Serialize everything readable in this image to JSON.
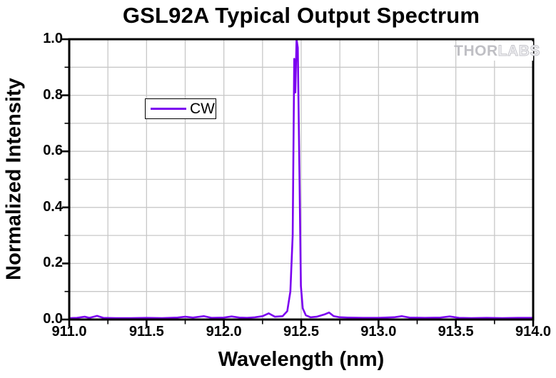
{
  "title": "GSL92A Typical Output Spectrum",
  "watermark": {
    "part1": "THOR",
    "part2": "LABS"
  },
  "legend": {
    "label": "CW"
  },
  "axes": {
    "x": {
      "label": "Wavelength (nm)",
      "min": 911.0,
      "max": 914.0,
      "major_ticks": [
        {
          "value": 911.0,
          "label": "911.0"
        },
        {
          "value": 911.5,
          "label": "911.5"
        },
        {
          "value": 912.0,
          "label": "912.0"
        },
        {
          "value": 912.5,
          "label": "912.5"
        },
        {
          "value": 913.0,
          "label": "913.0"
        },
        {
          "value": 913.5,
          "label": "913.5"
        },
        {
          "value": 914.0,
          "label": "914.0"
        }
      ],
      "minor_step": 0.25
    },
    "y": {
      "label": "Normalized Intensity",
      "min": 0.0,
      "max": 1.0,
      "major_ticks": [
        {
          "value": 0.0,
          "label": "0.0"
        },
        {
          "value": 0.2,
          "label": "0.2"
        },
        {
          "value": 0.4,
          "label": "0.4"
        },
        {
          "value": 0.6,
          "label": "0.6"
        },
        {
          "value": 0.8,
          "label": "0.8"
        },
        {
          "value": 1.0,
          "label": "1.0"
        }
      ],
      "minor_step": 0.1
    }
  },
  "colors": {
    "line": "#7B00F0",
    "grid": "#c8c8c8",
    "frame": "#000000",
    "watermark_gray": "#c6c6cb"
  },
  "chart_data": {
    "type": "line",
    "title": "GSL92A Typical Output Spectrum",
    "xlabel": "Wavelength (nm)",
    "ylabel": "Normalized Intensity",
    "xlim": [
      911.0,
      914.0
    ],
    "ylim": [
      0.0,
      1.0
    ],
    "grid": true,
    "grid_minor_x_nm": 0.25,
    "grid_minor_y": 0.1,
    "legend_position": "upper-left-inside",
    "series": [
      {
        "name": "CW",
        "color": "#7B00F0",
        "peak_wavelength_nm": 912.47,
        "peak_intensity": 1.0,
        "points": [
          [
            911.0,
            0.005
          ],
          [
            911.05,
            0.006
          ],
          [
            911.1,
            0.01
          ],
          [
            911.13,
            0.006
          ],
          [
            911.18,
            0.013
          ],
          [
            911.22,
            0.006
          ],
          [
            911.3,
            0.005
          ],
          [
            911.4,
            0.005
          ],
          [
            911.5,
            0.006
          ],
          [
            911.6,
            0.005
          ],
          [
            911.7,
            0.007
          ],
          [
            911.75,
            0.01
          ],
          [
            911.8,
            0.007
          ],
          [
            911.87,
            0.012
          ],
          [
            911.92,
            0.006
          ],
          [
            912.0,
            0.007
          ],
          [
            912.05,
            0.011
          ],
          [
            912.1,
            0.007
          ],
          [
            912.15,
            0.006
          ],
          [
            912.2,
            0.008
          ],
          [
            912.25,
            0.012
          ],
          [
            912.29,
            0.022
          ],
          [
            912.33,
            0.01
          ],
          [
            912.38,
            0.012
          ],
          [
            912.41,
            0.03
          ],
          [
            912.43,
            0.1
          ],
          [
            912.445,
            0.3
          ],
          [
            912.455,
            0.93
          ],
          [
            912.462,
            0.81
          ],
          [
            912.47,
            1.0
          ],
          [
            912.478,
            0.97
          ],
          [
            912.488,
            0.55
          ],
          [
            912.498,
            0.12
          ],
          [
            912.51,
            0.04
          ],
          [
            912.53,
            0.015
          ],
          [
            912.56,
            0.008
          ],
          [
            912.6,
            0.01
          ],
          [
            912.65,
            0.018
          ],
          [
            912.68,
            0.025
          ],
          [
            912.71,
            0.012
          ],
          [
            912.75,
            0.008
          ],
          [
            912.8,
            0.007
          ],
          [
            912.9,
            0.006
          ],
          [
            913.0,
            0.006
          ],
          [
            913.1,
            0.008
          ],
          [
            913.15,
            0.012
          ],
          [
            913.2,
            0.007
          ],
          [
            913.3,
            0.006
          ],
          [
            913.4,
            0.007
          ],
          [
            913.46,
            0.011
          ],
          [
            913.52,
            0.006
          ],
          [
            913.6,
            0.005
          ],
          [
            913.7,
            0.006
          ],
          [
            913.8,
            0.005
          ],
          [
            913.9,
            0.006
          ],
          [
            914.0,
            0.006
          ]
        ]
      }
    ]
  }
}
